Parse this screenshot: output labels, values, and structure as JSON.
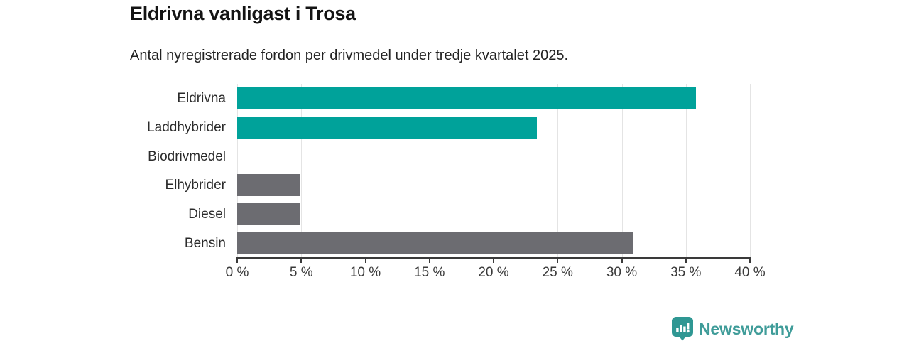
{
  "chart_data": {
    "type": "bar",
    "orientation": "horizontal",
    "title": "Eldrivna vanligast i Trosa",
    "subtitle": "Antal nyregistrerade fordon per drivmedel under tredje kvartalet 2025.",
    "categories": [
      "Eldrivna",
      "Laddhybrider",
      "Biodrivmedel",
      "Elhybrider",
      "Diesel",
      "Bensin"
    ],
    "values": [
      35.8,
      23.4,
      0,
      4.9,
      4.9,
      30.9
    ],
    "unit": "%",
    "xlabel": "",
    "ylabel": "",
    "xlim": [
      0,
      40
    ],
    "x_tick_values": [
      0,
      5,
      10,
      15,
      20,
      25,
      30,
      35,
      40
    ],
    "x_tick_labels": [
      "0 %",
      "5 %",
      "10 %",
      "15 %",
      "20 %",
      "25 %",
      "30 %",
      "35 %",
      "40 %"
    ],
    "bar_colors": [
      "#00a29a",
      "#00a29a",
      "#6c6c71",
      "#6c6c71",
      "#6c6c71",
      "#6c6c71"
    ],
    "grid": true,
    "legend": false
  },
  "colors": {
    "accent_teal": "#00a29a",
    "neutral_gray": "#6c6c71",
    "gridline": "#e4e4e4",
    "axis": "#3a3a3a",
    "brand": "#3f9c99"
  },
  "branding": {
    "name": "Newsworthy",
    "icon": "newsworthy-logo-icon"
  }
}
